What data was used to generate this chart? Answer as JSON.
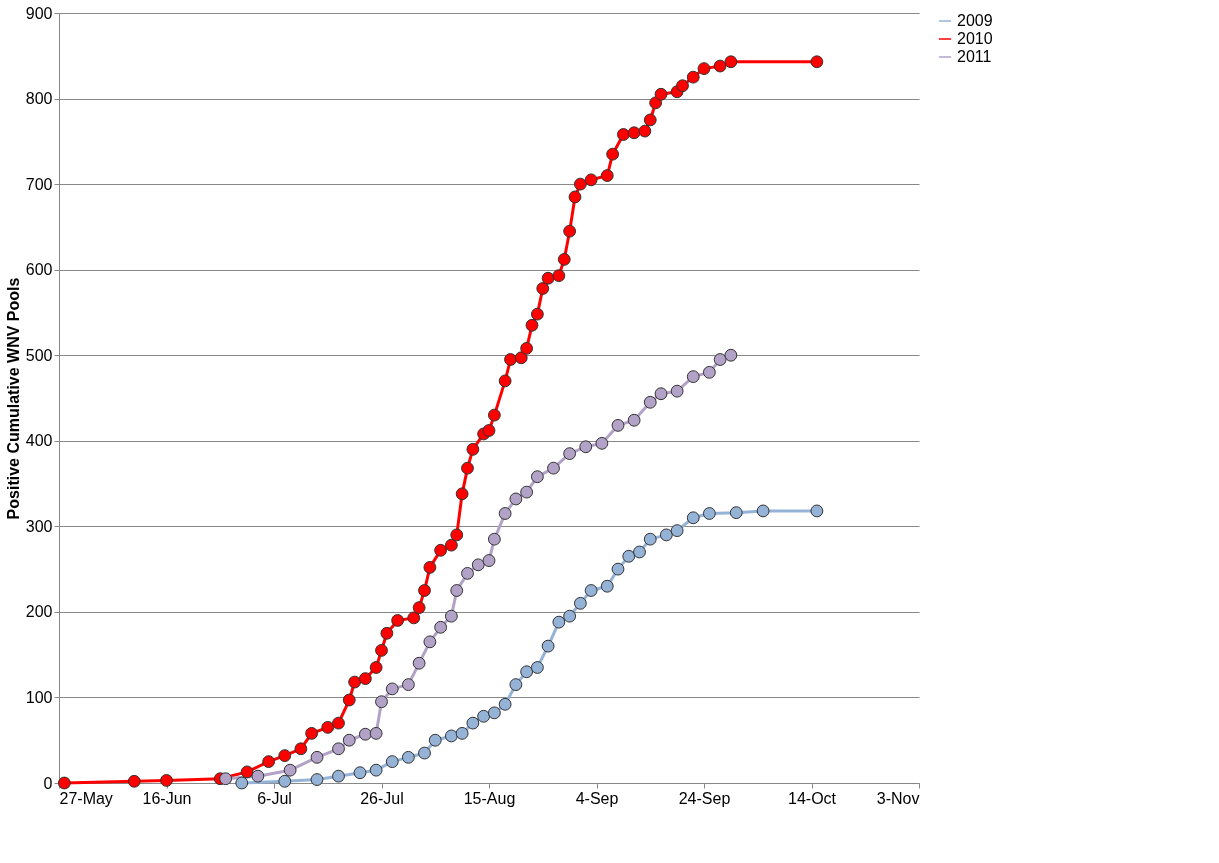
{
  "chart_data": {
    "type": "line",
    "ylabel": "Positive Cumulative  WNV Pools",
    "xlim": [
      "--05-27",
      "--11-03"
    ],
    "xticks": [
      {
        "value": "--05-27",
        "label": "27-May"
      },
      {
        "value": "--06-16",
        "label": "16-Jun"
      },
      {
        "value": "--07-06",
        "label": "6-Jul"
      },
      {
        "value": "--07-26",
        "label": "26-Jul"
      },
      {
        "value": "--08-15",
        "label": "15-Aug"
      },
      {
        "value": "--09-04",
        "label": "4-Sep"
      },
      {
        "value": "--09-24",
        "label": "24-Sep"
      },
      {
        "value": "--10-14",
        "label": "14-Oct"
      },
      {
        "value": "--11-03",
        "label": "3-Nov"
      }
    ],
    "ylim": [
      0,
      900
    ],
    "yticks": [
      0,
      100,
      200,
      300,
      400,
      500,
      600,
      700,
      800,
      900
    ],
    "grid": "y",
    "legend": "right",
    "marker": "circle",
    "line_style": "solid",
    "series": [
      {
        "name": "2009",
        "color": "#95b3d7",
        "x": [
          "--06-30",
          "--07-08",
          "--07-14",
          "--07-18",
          "--07-22",
          "--07-25",
          "--07-28",
          "--07-31",
          "--08-03",
          "--08-05",
          "--08-08",
          "--08-10",
          "--08-12",
          "--08-14",
          "--08-16",
          "--08-18",
          "--08-20",
          "--08-22",
          "--08-24",
          "--08-26",
          "--08-28",
          "--08-30",
          "--09-01",
          "--09-03",
          "--09-06",
          "--09-08",
          "--09-10",
          "--09-12",
          "--09-14",
          "--09-17",
          "--09-19",
          "--09-22",
          "--09-25",
          "--09-30",
          "--10-05",
          "--10-15"
        ],
        "values": [
          0,
          2,
          4,
          8,
          12,
          15,
          25,
          30,
          35,
          50,
          55,
          58,
          70,
          78,
          82,
          92,
          115,
          130,
          135,
          160,
          188,
          195,
          210,
          225,
          230,
          250,
          265,
          270,
          285,
          290,
          295,
          310,
          315,
          316,
          318,
          318
        ]
      },
      {
        "name": "2010",
        "color": "#ff0000",
        "x": [
          "--05-28",
          "--06-10",
          "--06-16",
          "--06-26",
          "--07-01",
          "--07-05",
          "--07-08",
          "--07-11",
          "--07-13",
          "--07-16",
          "--07-18",
          "--07-20",
          "--07-21",
          "--07-23",
          "--07-25",
          "--07-26",
          "--07-27",
          "--07-29",
          "--08-01",
          "--08-02",
          "--08-03",
          "--08-04",
          "--08-06",
          "--08-08",
          "--08-09",
          "--08-10",
          "--08-11",
          "--08-12",
          "--08-14",
          "--08-15",
          "--08-16",
          "--08-18",
          "--08-19",
          "--08-21",
          "--08-22",
          "--08-23",
          "--08-24",
          "--08-25",
          "--08-26",
          "--08-28",
          "--08-29",
          "--08-30",
          "--08-31",
          "--09-01",
          "--09-03",
          "--09-06",
          "--09-07",
          "--09-09",
          "--09-11",
          "--09-13",
          "--09-14",
          "--09-15",
          "--09-16",
          "--09-19",
          "--09-20",
          "--09-22",
          "--09-24",
          "--09-27",
          "--09-29",
          "--10-15"
        ],
        "values": [
          0,
          2,
          3,
          5,
          13,
          25,
          32,
          40,
          58,
          65,
          70,
          97,
          118,
          122,
          135,
          155,
          175,
          190,
          193,
          205,
          225,
          252,
          272,
          278,
          290,
          338,
          368,
          390,
          408,
          412,
          430,
          470,
          495,
          497,
          508,
          535,
          548,
          578,
          590,
          593,
          612,
          645,
          685,
          700,
          705,
          710,
          735,
          758,
          760,
          762,
          775,
          795,
          805,
          808,
          815,
          825,
          835,
          838,
          843,
          843
        ]
      },
      {
        "name": "2011",
        "color": "#b3a2c7",
        "x": [
          "--06-27",
          "--07-03",
          "--07-09",
          "--07-14",
          "--07-18",
          "--07-20",
          "--07-23",
          "--07-25",
          "--07-26",
          "--07-28",
          "--07-31",
          "--08-02",
          "--08-04",
          "--08-06",
          "--08-08",
          "--08-09",
          "--08-11",
          "--08-13",
          "--08-15",
          "--08-16",
          "--08-18",
          "--08-20",
          "--08-22",
          "--08-24",
          "--08-27",
          "--08-30",
          "--09-02",
          "--09-05",
          "--09-08",
          "--09-11",
          "--09-14",
          "--09-16",
          "--09-19",
          "--09-22",
          "--09-25",
          "--09-27",
          "--09-29"
        ],
        "values": [
          5,
          8,
          15,
          30,
          40,
          50,
          57,
          58,
          95,
          110,
          115,
          140,
          165,
          182,
          195,
          225,
          245,
          255,
          260,
          285,
          315,
          332,
          340,
          358,
          368,
          385,
          393,
          397,
          418,
          424,
          445,
          455,
          458,
          475,
          480,
          495,
          500
        ]
      }
    ]
  }
}
